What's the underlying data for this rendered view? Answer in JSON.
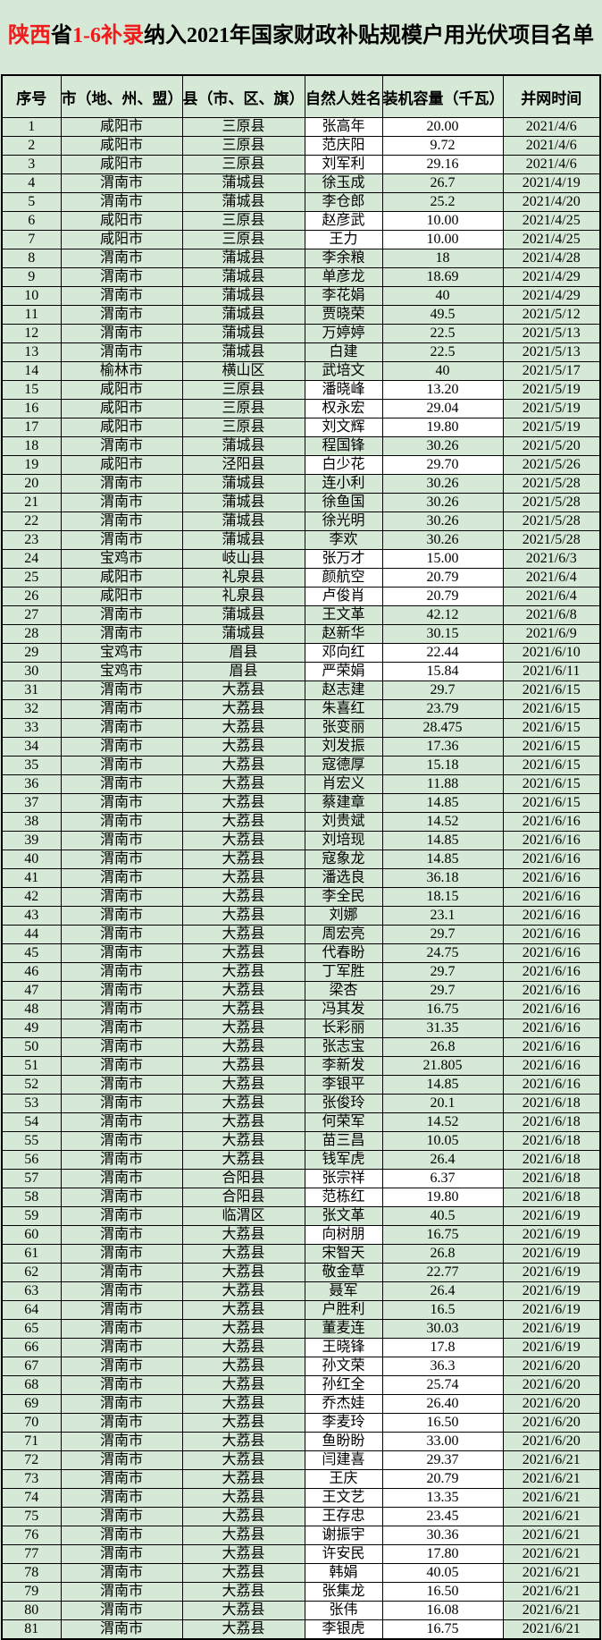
{
  "palette": {
    "page_bg": "#d6e9d6",
    "cell_white": "#ffffff",
    "border": "#000000",
    "title_red": "#ee1c1c",
    "text": "#000000"
  },
  "title": {
    "segments": [
      {
        "text": "陕西",
        "emphasis": true
      },
      {
        "text": "省",
        "emphasis": false
      },
      {
        "text": "1-6补录",
        "emphasis": true
      },
      {
        "text": "纳入2021年国家财政补贴规模户用光伏项目名单",
        "emphasis": false
      }
    ]
  },
  "table": {
    "headers": [
      "序号",
      "市（地、州、盟）",
      "县（市、区、旗）",
      "自然人姓名",
      "装机容量（千瓦）",
      "并网时间"
    ],
    "rows": [
      {
        "no": "1",
        "city": "咸阳市",
        "county": "三原县",
        "name": "张高年",
        "capacity": "20.00",
        "date": "2021/4/6",
        "white": "both"
      },
      {
        "no": "2",
        "city": "咸阳市",
        "county": "三原县",
        "name": "范庆阳",
        "capacity": "9.72",
        "date": "2021/4/6",
        "white": "both"
      },
      {
        "no": "3",
        "city": "咸阳市",
        "county": "三原县",
        "name": "刘军利",
        "capacity": "29.16",
        "date": "2021/4/6",
        "white": "both"
      },
      {
        "no": "4",
        "city": "渭南市",
        "county": "蒲城县",
        "name": "徐玉成",
        "capacity": "26.7",
        "date": "2021/4/19",
        "white": "none"
      },
      {
        "no": "5",
        "city": "渭南市",
        "county": "蒲城县",
        "name": "李仓郎",
        "capacity": "25.2",
        "date": "2021/4/20",
        "white": "none"
      },
      {
        "no": "6",
        "city": "咸阳市",
        "county": "三原县",
        "name": "赵彦武",
        "capacity": "10.00",
        "date": "2021/4/25",
        "white": "both"
      },
      {
        "no": "7",
        "city": "咸阳市",
        "county": "三原县",
        "name": "王力",
        "capacity": "10.00",
        "date": "2021/4/25",
        "white": "both"
      },
      {
        "no": "8",
        "city": "渭南市",
        "county": "蒲城县",
        "name": "李余粮",
        "capacity": "18",
        "date": "2021/4/28",
        "white": "none"
      },
      {
        "no": "9",
        "city": "渭南市",
        "county": "蒲城县",
        "name": "单彦龙",
        "capacity": "18.69",
        "date": "2021/4/29",
        "white": "none"
      },
      {
        "no": "10",
        "city": "渭南市",
        "county": "蒲城县",
        "name": "李花娟",
        "capacity": "40",
        "date": "2021/4/29",
        "white": "none"
      },
      {
        "no": "11",
        "city": "渭南市",
        "county": "蒲城县",
        "name": "贾晓荣",
        "capacity": "49.5",
        "date": "2021/5/12",
        "white": "none"
      },
      {
        "no": "12",
        "city": "渭南市",
        "county": "蒲城县",
        "name": "万婷婷",
        "capacity": "22.5",
        "date": "2021/5/13",
        "white": "none"
      },
      {
        "no": "13",
        "city": "渭南市",
        "county": "蒲城县",
        "name": "白建",
        "capacity": "22.5",
        "date": "2021/5/13",
        "white": "none"
      },
      {
        "no": "14",
        "city": "榆林市",
        "county": "横山区",
        "name": "武培文",
        "capacity": "40",
        "date": "2021/5/17",
        "white": "none"
      },
      {
        "no": "15",
        "city": "咸阳市",
        "county": "三原县",
        "name": "潘晓峰",
        "capacity": "13.20",
        "date": "2021/5/19",
        "white": "both"
      },
      {
        "no": "16",
        "city": "咸阳市",
        "county": "三原县",
        "name": "权永宏",
        "capacity": "29.04",
        "date": "2021/5/19",
        "white": "both"
      },
      {
        "no": "17",
        "city": "咸阳市",
        "county": "三原县",
        "name": "刘文辉",
        "capacity": "19.80",
        "date": "2021/5/19",
        "white": "both"
      },
      {
        "no": "18",
        "city": "渭南市",
        "county": "蒲城县",
        "name": "程国锋",
        "capacity": "30.26",
        "date": "2021/5/20",
        "white": "none"
      },
      {
        "no": "19",
        "city": "咸阳市",
        "county": "泾阳县",
        "name": "白少花",
        "capacity": "29.70",
        "date": "2021/5/26",
        "white": "both"
      },
      {
        "no": "20",
        "city": "渭南市",
        "county": "蒲城县",
        "name": "连小利",
        "capacity": "30.26",
        "date": "2021/5/28",
        "white": "none"
      },
      {
        "no": "21",
        "city": "渭南市",
        "county": "蒲城县",
        "name": "徐鱼国",
        "capacity": "30.26",
        "date": "2021/5/28",
        "white": "none"
      },
      {
        "no": "22",
        "city": "渭南市",
        "county": "蒲城县",
        "name": "徐光明",
        "capacity": "30.26",
        "date": "2021/5/28",
        "white": "none"
      },
      {
        "no": "23",
        "city": "渭南市",
        "county": "蒲城县",
        "name": "李欢",
        "capacity": "30.26",
        "date": "2021/5/28",
        "white": "none"
      },
      {
        "no": "24",
        "city": "宝鸡市",
        "county": "岐山县",
        "name": "张万才",
        "capacity": "15.00",
        "date": "2021/6/3",
        "white": "both"
      },
      {
        "no": "25",
        "city": "咸阳市",
        "county": "礼泉县",
        "name": "颜航空",
        "capacity": "20.79",
        "date": "2021/6/4",
        "white": "both"
      },
      {
        "no": "26",
        "city": "咸阳市",
        "county": "礼泉县",
        "name": "卢俊肖",
        "capacity": "20.79",
        "date": "2021/6/4",
        "white": "both"
      },
      {
        "no": "27",
        "city": "渭南市",
        "county": "蒲城县",
        "name": "王文革",
        "capacity": "42.12",
        "date": "2021/6/8",
        "white": "none"
      },
      {
        "no": "28",
        "city": "渭南市",
        "county": "蒲城县",
        "name": "赵新华",
        "capacity": "30.15",
        "date": "2021/6/9",
        "white": "none"
      },
      {
        "no": "29",
        "city": "宝鸡市",
        "county": "眉县",
        "name": "邓向红",
        "capacity": "22.44",
        "date": "2021/6/10",
        "white": "both"
      },
      {
        "no": "30",
        "city": "宝鸡市",
        "county": "眉县",
        "name": "严荣娟",
        "capacity": "15.84",
        "date": "2021/6/11",
        "white": "both"
      },
      {
        "no": "31",
        "city": "渭南市",
        "county": "大荔县",
        "name": "赵志建",
        "capacity": "29.7",
        "date": "2021/6/15",
        "white": "none"
      },
      {
        "no": "32",
        "city": "渭南市",
        "county": "大荔县",
        "name": "朱喜红",
        "capacity": "23.79",
        "date": "2021/6/15",
        "white": "none"
      },
      {
        "no": "33",
        "city": "渭南市",
        "county": "大荔县",
        "name": "张变丽",
        "capacity": "28.475",
        "date": "2021/6/15",
        "white": "none"
      },
      {
        "no": "34",
        "city": "渭南市",
        "county": "大荔县",
        "name": "刘发振",
        "capacity": "17.36",
        "date": "2021/6/15",
        "white": "none"
      },
      {
        "no": "35",
        "city": "渭南市",
        "county": "大荔县",
        "name": "寇德厚",
        "capacity": "15.18",
        "date": "2021/6/15",
        "white": "none"
      },
      {
        "no": "36",
        "city": "渭南市",
        "county": "大荔县",
        "name": "肖宏义",
        "capacity": "11.88",
        "date": "2021/6/15",
        "white": "none"
      },
      {
        "no": "37",
        "city": "渭南市",
        "county": "大荔县",
        "name": "蔡建章",
        "capacity": "14.85",
        "date": "2021/6/15",
        "white": "none"
      },
      {
        "no": "38",
        "city": "渭南市",
        "county": "大荔县",
        "name": "刘贵斌",
        "capacity": "14.52",
        "date": "2021/6/16",
        "white": "none"
      },
      {
        "no": "39",
        "city": "渭南市",
        "county": "大荔县",
        "name": "刘培现",
        "capacity": "14.85",
        "date": "2021/6/16",
        "white": "none"
      },
      {
        "no": "40",
        "city": "渭南市",
        "county": "大荔县",
        "name": "寇象龙",
        "capacity": "14.85",
        "date": "2021/6/16",
        "white": "none"
      },
      {
        "no": "41",
        "city": "渭南市",
        "county": "大荔县",
        "name": "潘选良",
        "capacity": "36.18",
        "date": "2021/6/16",
        "white": "none"
      },
      {
        "no": "42",
        "city": "渭南市",
        "county": "大荔县",
        "name": "李全民",
        "capacity": "18.15",
        "date": "2021/6/16",
        "white": "none"
      },
      {
        "no": "43",
        "city": "渭南市",
        "county": "大荔县",
        "name": "刘娜",
        "capacity": "23.1",
        "date": "2021/6/16",
        "white": "none"
      },
      {
        "no": "44",
        "city": "渭南市",
        "county": "大荔县",
        "name": "周宏亮",
        "capacity": "29.7",
        "date": "2021/6/16",
        "white": "none"
      },
      {
        "no": "45",
        "city": "渭南市",
        "county": "大荔县",
        "name": "代春盼",
        "capacity": "24.75",
        "date": "2021/6/16",
        "white": "none"
      },
      {
        "no": "46",
        "city": "渭南市",
        "county": "大荔县",
        "name": "丁军胜",
        "capacity": "29.7",
        "date": "2021/6/16",
        "white": "none"
      },
      {
        "no": "47",
        "city": "渭南市",
        "county": "大荔县",
        "name": "梁杏",
        "capacity": "29.7",
        "date": "2021/6/16",
        "white": "none"
      },
      {
        "no": "48",
        "city": "渭南市",
        "county": "大荔县",
        "name": "冯其发",
        "capacity": "16.75",
        "date": "2021/6/16",
        "white": "none"
      },
      {
        "no": "49",
        "city": "渭南市",
        "county": "大荔县",
        "name": "长彩丽",
        "capacity": "31.35",
        "date": "2021/6/16",
        "white": "none"
      },
      {
        "no": "50",
        "city": "渭南市",
        "county": "大荔县",
        "name": "张志宝",
        "capacity": "26.8",
        "date": "2021/6/16",
        "white": "none"
      },
      {
        "no": "51",
        "city": "渭南市",
        "county": "大荔县",
        "name": "李新发",
        "capacity": "21.805",
        "date": "2021/6/16",
        "white": "none"
      },
      {
        "no": "52",
        "city": "渭南市",
        "county": "大荔县",
        "name": "李银平",
        "capacity": "14.85",
        "date": "2021/6/16",
        "white": "none"
      },
      {
        "no": "53",
        "city": "渭南市",
        "county": "大荔县",
        "name": "张俊玲",
        "capacity": "20.1",
        "date": "2021/6/18",
        "white": "none"
      },
      {
        "no": "54",
        "city": "渭南市",
        "county": "大荔县",
        "name": "何荣军",
        "capacity": "14.52",
        "date": "2021/6/18",
        "white": "none"
      },
      {
        "no": "55",
        "city": "渭南市",
        "county": "大荔县",
        "name": "苗三昌",
        "capacity": "10.05",
        "date": "2021/6/18",
        "white": "none"
      },
      {
        "no": "56",
        "city": "渭南市",
        "county": "大荔县",
        "name": "钱军虎",
        "capacity": "26.4",
        "date": "2021/6/18",
        "white": "none"
      },
      {
        "no": "57",
        "city": "渭南市",
        "county": "合阳县",
        "name": "张宗祥",
        "capacity": "6.37",
        "date": "2021/6/18",
        "white": "both"
      },
      {
        "no": "58",
        "city": "渭南市",
        "county": "合阳县",
        "name": "范栋红",
        "capacity": "19.80",
        "date": "2021/6/18",
        "white": "both"
      },
      {
        "no": "59",
        "city": "渭南市",
        "county": "临渭区",
        "name": "张文革",
        "capacity": "40.5",
        "date": "2021/6/19",
        "white": "none"
      },
      {
        "no": "60",
        "city": "渭南市",
        "county": "大荔县",
        "name": "向树朋",
        "capacity": "16.75",
        "date": "2021/6/19",
        "white": "name"
      },
      {
        "no": "61",
        "city": "渭南市",
        "county": "大荔县",
        "name": "宋智天",
        "capacity": "26.8",
        "date": "2021/6/19",
        "white": "none"
      },
      {
        "no": "62",
        "city": "渭南市",
        "county": "大荔县",
        "name": "敬金草",
        "capacity": "22.77",
        "date": "2021/6/19",
        "white": "none"
      },
      {
        "no": "63",
        "city": "渭南市",
        "county": "大荔县",
        "name": "聂军",
        "capacity": "26.4",
        "date": "2021/6/19",
        "white": "none"
      },
      {
        "no": "64",
        "city": "渭南市",
        "county": "大荔县",
        "name": "户胜利",
        "capacity": "16.5",
        "date": "2021/6/19",
        "white": "none"
      },
      {
        "no": "65",
        "city": "渭南市",
        "county": "大荔县",
        "name": "董麦连",
        "capacity": "30.03",
        "date": "2021/6/19",
        "white": "none"
      },
      {
        "no": "66",
        "city": "渭南市",
        "county": "大荔县",
        "name": "王晓锋",
        "capacity": "17.8",
        "date": "2021/6/19",
        "white": "both"
      },
      {
        "no": "67",
        "city": "渭南市",
        "county": "大荔县",
        "name": "孙文荣",
        "capacity": "36.3",
        "date": "2021/6/20",
        "white": "both"
      },
      {
        "no": "68",
        "city": "渭南市",
        "county": "大荔县",
        "name": "孙红全",
        "capacity": "25.74",
        "date": "2021/6/20",
        "white": "both"
      },
      {
        "no": "69",
        "city": "渭南市",
        "county": "大荔县",
        "name": "乔杰娃",
        "capacity": "26.40",
        "date": "2021/6/20",
        "white": "both"
      },
      {
        "no": "70",
        "city": "渭南市",
        "county": "大荔县",
        "name": "李麦玲",
        "capacity": "16.50",
        "date": "2021/6/20",
        "white": "both"
      },
      {
        "no": "71",
        "city": "渭南市",
        "county": "大荔县",
        "name": "鱼盼盼",
        "capacity": "33.00",
        "date": "2021/6/20",
        "white": "both"
      },
      {
        "no": "72",
        "city": "渭南市",
        "county": "大荔县",
        "name": "闫建喜",
        "capacity": "29.37",
        "date": "2021/6/21",
        "white": "both"
      },
      {
        "no": "73",
        "city": "渭南市",
        "county": "大荔县",
        "name": "王庆",
        "capacity": "20.79",
        "date": "2021/6/21",
        "white": "both"
      },
      {
        "no": "74",
        "city": "渭南市",
        "county": "大荔县",
        "name": "王文艺",
        "capacity": "13.35",
        "date": "2021/6/21",
        "white": "both"
      },
      {
        "no": "75",
        "city": "渭南市",
        "county": "大荔县",
        "name": "王存忠",
        "capacity": "23.45",
        "date": "2021/6/21",
        "white": "both"
      },
      {
        "no": "76",
        "city": "渭南市",
        "county": "大荔县",
        "name": "谢振宇",
        "capacity": "30.36",
        "date": "2021/6/21",
        "white": "both"
      },
      {
        "no": "77",
        "city": "渭南市",
        "county": "大荔县",
        "name": "许安民",
        "capacity": "17.80",
        "date": "2021/6/21",
        "white": "both"
      },
      {
        "no": "78",
        "city": "渭南市",
        "county": "大荔县",
        "name": "韩娟",
        "capacity": "40.05",
        "date": "2021/6/21",
        "white": "both"
      },
      {
        "no": "79",
        "city": "渭南市",
        "county": "大荔县",
        "name": "张集龙",
        "capacity": "16.50",
        "date": "2021/6/21",
        "white": "both"
      },
      {
        "no": "80",
        "city": "渭南市",
        "county": "大荔县",
        "name": "张伟",
        "capacity": "16.08",
        "date": "2021/6/21",
        "white": "both"
      },
      {
        "no": "81",
        "city": "渭南市",
        "county": "大荔县",
        "name": "李银虎",
        "capacity": "16.75",
        "date": "2021/6/21",
        "white": "both"
      }
    ]
  }
}
